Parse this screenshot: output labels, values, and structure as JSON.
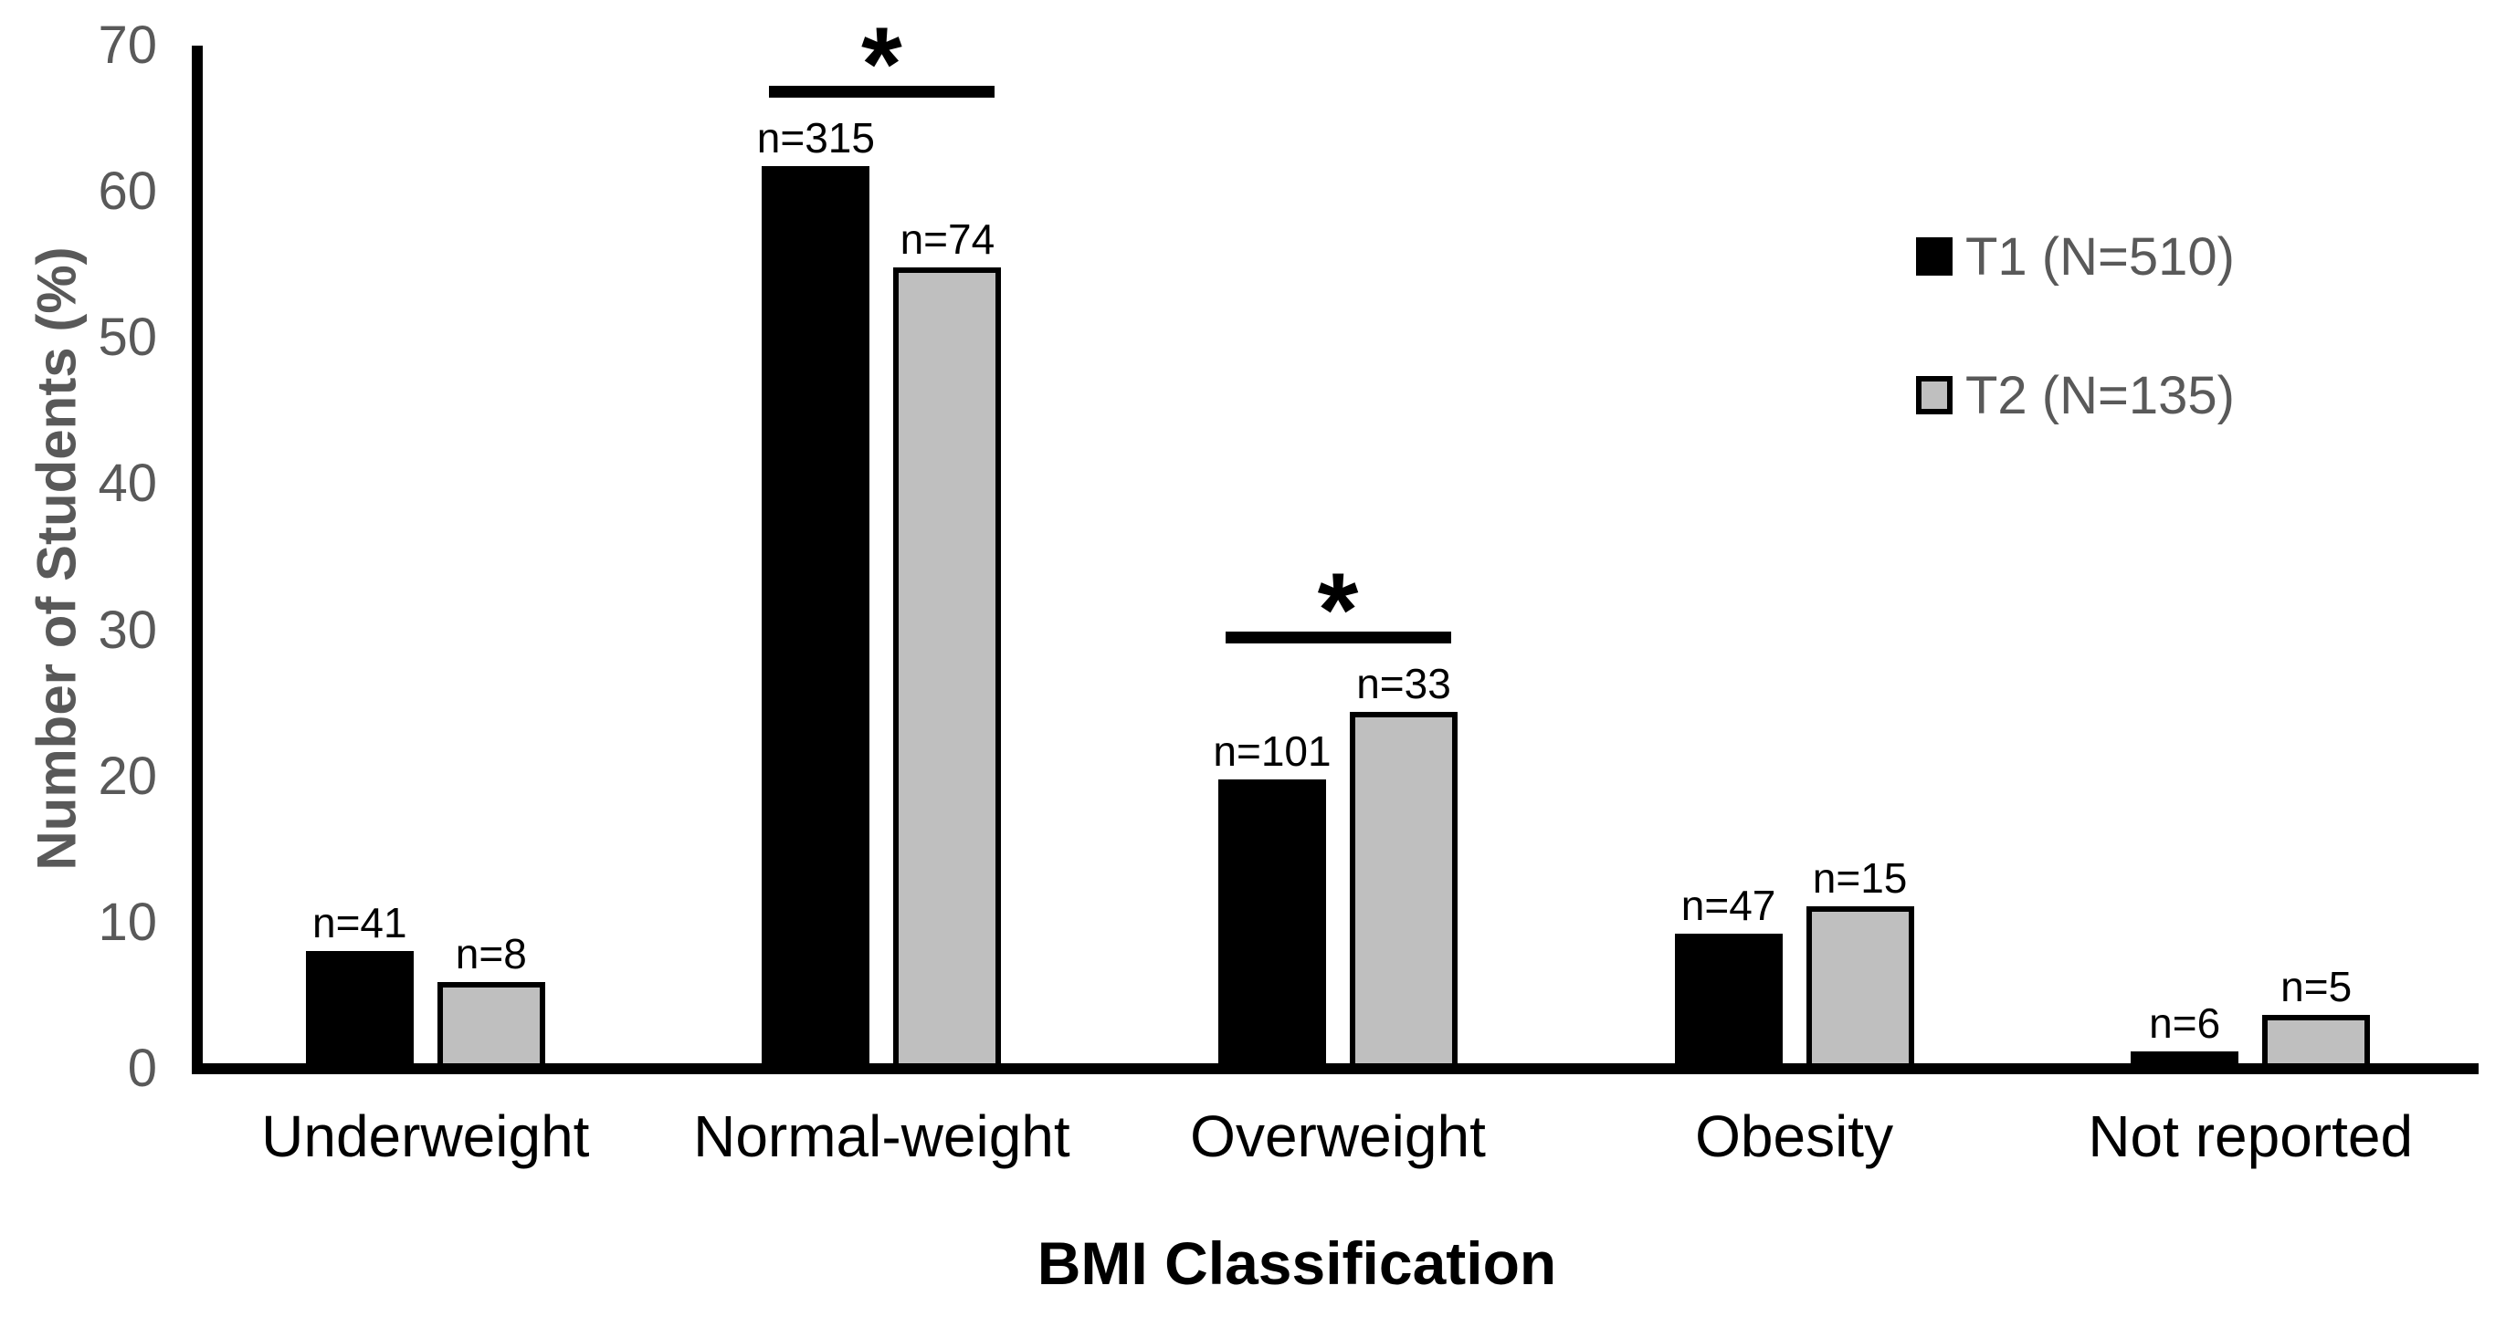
{
  "chart_data": {
    "type": "bar",
    "title": "",
    "xlabel": "BMI Classification",
    "ylabel": "Number of Students (%)",
    "ylim": [
      0,
      70
    ],
    "yticks": [
      0,
      10,
      20,
      30,
      40,
      50,
      60,
      70
    ],
    "grid": false,
    "legend_position": "right",
    "categories": [
      "Underweight",
      "Normal-weight",
      "Overweight",
      "Obesity",
      "Not reported"
    ],
    "series": [
      {
        "name": "T1 (N=510)",
        "color": "#000000",
        "border_color": "#000000",
        "values": [
          8.04,
          61.76,
          19.8,
          9.22,
          1.18
        ],
        "count_labels": [
          "n=41",
          "n=315",
          "n=101",
          "n=47",
          "n=6"
        ]
      },
      {
        "name": "T2 (N=135)",
        "color": "#bfbfbf",
        "border_color": "#000000",
        "values": [
          5.93,
          54.81,
          24.44,
          11.11,
          3.7
        ],
        "count_labels": [
          "n=8",
          "n=74",
          "n=33",
          "n=15",
          "n=5"
        ]
      }
    ],
    "significance_markers": [
      {
        "category": "Normal-weight",
        "category_index": 1,
        "symbol": "*"
      },
      {
        "category": "Overweight",
        "category_index": 2,
        "symbol": "*"
      }
    ]
  },
  "colors": {
    "axis_line": "#000000",
    "tick_text": "#595959",
    "y_axis_title_text": "#595959",
    "x_axis_title_text": "#000000",
    "category_text": "#000000",
    "bar_label_text": "#000000",
    "legend_text": "#595959",
    "t1_fill": "#000000",
    "t2_fill": "#bfbfbf",
    "background": "#ffffff"
  }
}
